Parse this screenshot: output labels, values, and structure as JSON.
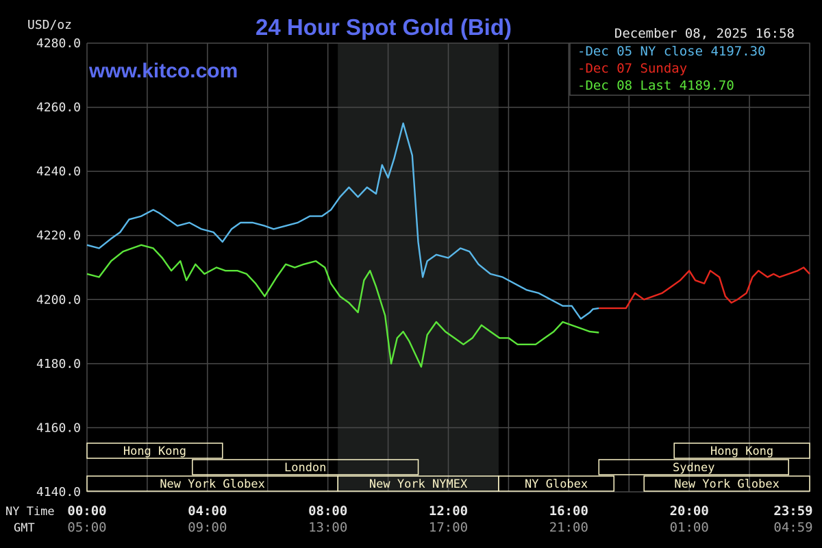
{
  "colors": {
    "background": "#000000",
    "shaded": "#1b1d1c",
    "grid": "#4a4a4a",
    "axis_text": "#e8e8e8",
    "gmt_text": "#9a9a9a",
    "title": "#5b6cf0",
    "session_fill": "#fdf6c9",
    "session_text": "#333333",
    "dec05": "#5ab8ea",
    "dec07": "#e8281e",
    "dec08": "#5ce63a"
  },
  "chart_data": {
    "type": "line",
    "title": "24 Hour Spot Gold (Bid)",
    "ylabel": "USD/oz",
    "watermark": "www.kitco.com",
    "timestamp": "December 08, 2025 16:58",
    "ylim": [
      4140,
      4280
    ],
    "y_ticks": [
      "4280.0",
      "4260.0",
      "4240.0",
      "4220.0",
      "4200.0",
      "4180.0",
      "4160.0",
      "4140.0"
    ],
    "y_tick_values": [
      4280,
      4260,
      4240,
      4220,
      4200,
      4180,
      4160,
      4140
    ],
    "x_range_hours": [
      0,
      24
    ],
    "x_label_ny": "NY Time",
    "x_label_gmt": "GMT",
    "x_ticks_ny": [
      "00:00",
      "04:00",
      "08:00",
      "12:00",
      "16:00",
      "20:00",
      "23:59"
    ],
    "x_ticks_gmt": [
      "05:00",
      "09:00",
      "13:00",
      "17:00",
      "21:00",
      "01:00",
      "04:59"
    ],
    "x_tick_hours": [
      0,
      4,
      8,
      12,
      16,
      20,
      24
    ],
    "shaded_hours": [
      8.33,
      13.67
    ],
    "legend": [
      {
        "label": "Dec 05 NY close 4197.30",
        "color": "#5ab8ea"
      },
      {
        "label": "Dec 07 Sunday",
        "color": "#e8281e"
      },
      {
        "label": "Dec 08 Last 4189.70",
        "color": "#5ce63a"
      }
    ],
    "sessions": [
      {
        "label": "Hong Kong",
        "start": 0,
        "end": 4.5,
        "row": 0
      },
      {
        "label": "London",
        "start": 3.5,
        "end": 11,
        "row": 1
      },
      {
        "label": "New York Globex",
        "start": 0,
        "end": 8.33,
        "row": 2
      },
      {
        "label": "New York NYMEX",
        "start": 8.33,
        "end": 13.67,
        "row": 2
      },
      {
        "label": "NY Globex",
        "start": 13.67,
        "end": 17.5,
        "row": 2
      },
      {
        "label": "Hong Kong",
        "start": 19.5,
        "end": 24,
        "row": 0
      },
      {
        "label": "Sydney",
        "start": 17,
        "end": 23.3,
        "row": 1
      },
      {
        "label": "New York Globex",
        "start": 18.5,
        "end": 24,
        "row": 2
      }
    ],
    "series": [
      {
        "name": "Dec 05 NY close 4197.30",
        "color": "#5ab8ea",
        "x": [
          0,
          0.4,
          0.8,
          1.1,
          1.4,
          1.8,
          2.2,
          2.4,
          2.7,
          3.0,
          3.4,
          3.8,
          4.2,
          4.5,
          4.8,
          5.1,
          5.5,
          5.9,
          6.2,
          6.6,
          7.0,
          7.4,
          7.8,
          8.1,
          8.4,
          8.7,
          9.0,
          9.3,
          9.6,
          9.8,
          10.0,
          10.2,
          10.5,
          10.8,
          11.0,
          11.15,
          11.3,
          11.6,
          12.0,
          12.4,
          12.7,
          13.0,
          13.4,
          13.8,
          14.2,
          14.6,
          15.0,
          15.4,
          15.8,
          16.1,
          16.4,
          16.7,
          16.8,
          17.0
        ],
        "values": [
          4217,
          4216,
          4219,
          4221,
          4225,
          4226,
          4228,
          4227,
          4225,
          4223,
          4224,
          4222,
          4221,
          4218,
          4222,
          4224,
          4224,
          4223,
          4222,
          4223,
          4224,
          4226,
          4226,
          4228,
          4232,
          4235,
          4232,
          4235,
          4233,
          4242,
          4238,
          4244,
          4255,
          4245,
          4218,
          4207,
          4212,
          4214,
          4213,
          4216,
          4215,
          4211,
          4208,
          4207,
          4205,
          4203,
          4202,
          4200,
          4198,
          4198,
          4194,
          4196,
          4197,
          4197.3
        ]
      },
      {
        "name": "Dec 07 Sunday",
        "color": "#e8281e",
        "x": [
          17.0,
          17.6,
          17.9,
          18.2,
          18.5,
          18.8,
          19.1,
          19.4,
          19.7,
          20.0,
          20.2,
          20.5,
          20.7,
          21.0,
          21.2,
          21.4,
          21.6,
          21.9,
          22.1,
          22.3,
          22.6,
          22.8,
          23.0,
          23.3,
          23.6,
          23.8,
          24.0
        ],
        "values": [
          4197.3,
          4197.3,
          4197.3,
          4202,
          4200,
          4201,
          4202,
          4204,
          4206,
          4209,
          4206,
          4205,
          4209,
          4207,
          4201,
          4199,
          4200,
          4202,
          4207,
          4209,
          4207,
          4208,
          4207,
          4208,
          4209,
          4210,
          4208
        ]
      },
      {
        "name": "Dec 08 Last 4189.70",
        "color": "#5ce63a",
        "x": [
          0,
          0.4,
          0.8,
          1.2,
          1.5,
          1.8,
          2.2,
          2.5,
          2.8,
          3.1,
          3.3,
          3.6,
          3.9,
          4.3,
          4.6,
          5.0,
          5.3,
          5.6,
          5.9,
          6.3,
          6.6,
          6.9,
          7.2,
          7.6,
          7.9,
          8.1,
          8.4,
          8.7,
          9.0,
          9.2,
          9.4,
          9.6,
          9.9,
          10.1,
          10.3,
          10.5,
          10.7,
          10.9,
          11.1,
          11.3,
          11.6,
          11.9,
          12.2,
          12.5,
          12.8,
          13.1,
          13.4,
          13.7,
          14.0,
          14.3,
          14.6,
          14.9,
          15.2,
          15.5,
          15.8,
          16.1,
          16.4,
          16.7,
          17.0
        ],
        "values": [
          4208,
          4207,
          4212,
          4215,
          4216,
          4217,
          4216,
          4213,
          4209,
          4212,
          4206,
          4211,
          4208,
          4210,
          4209,
          4209,
          4208,
          4205,
          4201,
          4207,
          4211,
          4210,
          4211,
          4212,
          4210,
          4205,
          4201,
          4199,
          4196,
          4206,
          4209,
          4204,
          4195,
          4180,
          4188,
          4190,
          4187,
          4183,
          4179,
          4189,
          4193,
          4190,
          4188,
          4186,
          4188,
          4192,
          4190,
          4188,
          4188,
          4186,
          4186,
          4186,
          4188,
          4190,
          4193,
          4192,
          4191,
          4190,
          4189.7
        ]
      }
    ]
  }
}
